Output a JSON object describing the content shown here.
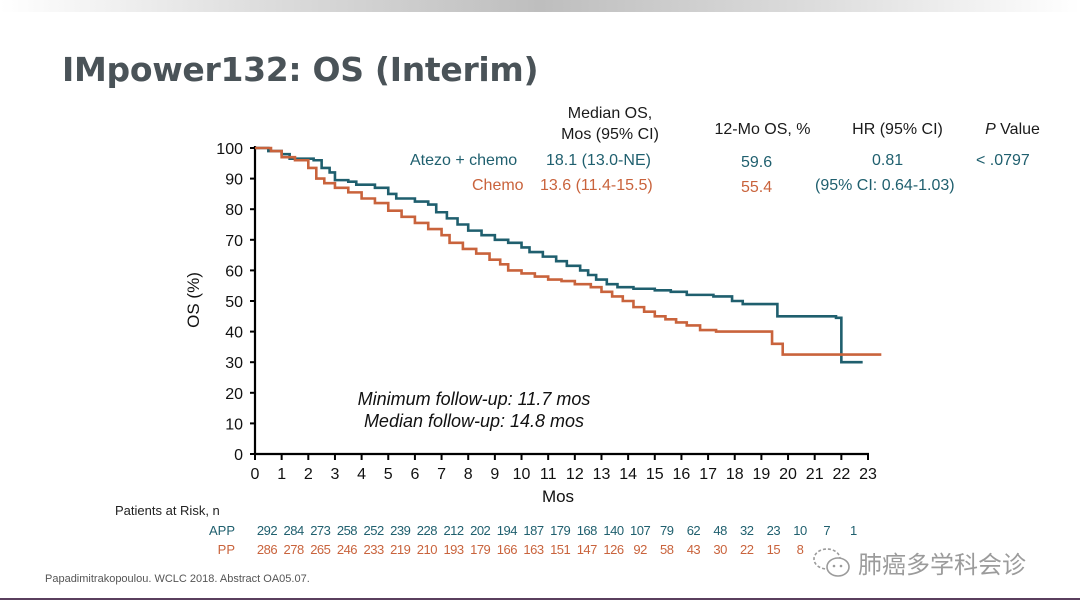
{
  "slide": {
    "title": "IMpower132: OS (Interim)",
    "citation": "Papadimitrakopoulou. WCLC 2018. Abstract OA05.07.",
    "watermark": "肺癌多学科会诊",
    "colors": {
      "atezo": "#1f5f6e",
      "chemo": "#c9633c",
      "title": "#4a5358",
      "rule": "#5a3f5e"
    }
  },
  "table": {
    "headers": {
      "median_line1": "Median OS,",
      "median_line2": "Mos (95% CI)",
      "os12": "12-Mo OS, %",
      "hr": "HR (95% CI)",
      "p_italic": "P",
      "p_rest": " Value"
    },
    "rows": [
      {
        "arm": "Atezo + chemo",
        "median": "18.1 (13.0-NE)",
        "os12": "59.6",
        "hr": "0.81",
        "p": "< .0797"
      },
      {
        "arm": "Chemo",
        "median": "13.6 (11.4-15.5)",
        "os12": "55.4",
        "hr": "(95% CI: 0.64-1.03)",
        "p": ""
      }
    ]
  },
  "annotations": {
    "line1": "Minimum follow-up: 11.7 mos",
    "line2": "Median follow-up: 14.8 mos"
  },
  "risk_table": {
    "title": "Patients at Risk, n",
    "rows": [
      {
        "label": "APP",
        "values": [
          "292",
          "284",
          "273",
          "258",
          "252",
          "239",
          "228",
          "212",
          "202",
          "194",
          "187",
          "179",
          "168",
          "140",
          "107",
          "79",
          "62",
          "48",
          "32",
          "23",
          "10",
          "7",
          "1",
          ""
        ]
      },
      {
        "label": "PP",
        "values": [
          "286",
          "278",
          "265",
          "246",
          "233",
          "219",
          "210",
          "193",
          "179",
          "166",
          "163",
          "151",
          "147",
          "126",
          "92",
          "58",
          "43",
          "30",
          "22",
          "15",
          "8",
          "",
          "",
          ""
        ]
      }
    ]
  },
  "chart_data": {
    "type": "line",
    "subtype": "kaplan-meier step",
    "title": "IMpower132: OS (Interim)",
    "xlabel": "Mos",
    "ylabel": "OS (%)",
    "xlim": [
      0,
      23
    ],
    "ylim": [
      0,
      100
    ],
    "xticks": [
      "0",
      "1",
      "2",
      "3",
      "4",
      "5",
      "6",
      "7",
      "8",
      "9",
      "10",
      "11",
      "12",
      "13",
      "14",
      "15",
      "16",
      "17",
      "18",
      "19",
      "20",
      "21",
      "22",
      "23"
    ],
    "yticks": [
      "0",
      "10",
      "20",
      "30",
      "40",
      "50",
      "60",
      "70",
      "80",
      "90",
      "100"
    ],
    "grid": false,
    "legend": "top-right (inline with summary table)",
    "series": [
      {
        "name": "Atezo + chemo",
        "color": "#1f5f6e",
        "points": [
          [
            0,
            100
          ],
          [
            0.5,
            99
          ],
          [
            1,
            98
          ],
          [
            1.3,
            96.5
          ],
          [
            2,
            96.5
          ],
          [
            2.2,
            96
          ],
          [
            2.5,
            93.5
          ],
          [
            2.8,
            92
          ],
          [
            3,
            89.5
          ],
          [
            3.5,
            89
          ],
          [
            3.8,
            88
          ],
          [
            4.5,
            87
          ],
          [
            5,
            85
          ],
          [
            5.3,
            83.5
          ],
          [
            6,
            82.5
          ],
          [
            6.5,
            81.5
          ],
          [
            6.8,
            79
          ],
          [
            7.2,
            77
          ],
          [
            7.6,
            75
          ],
          [
            8,
            73
          ],
          [
            8.5,
            71.5
          ],
          [
            9,
            70
          ],
          [
            9.5,
            69
          ],
          [
            10,
            67.5
          ],
          [
            10.3,
            66
          ],
          [
            10.8,
            64.5
          ],
          [
            11.3,
            63
          ],
          [
            11.7,
            61.5
          ],
          [
            12.2,
            60
          ],
          [
            12.5,
            58.5
          ],
          [
            12.8,
            57
          ],
          [
            13.2,
            55.5
          ],
          [
            13.6,
            54.5
          ],
          [
            14.2,
            54
          ],
          [
            15,
            53.5
          ],
          [
            15.6,
            53
          ],
          [
            16.2,
            52
          ],
          [
            17.2,
            51.5
          ],
          [
            17.9,
            50
          ],
          [
            18.3,
            49
          ],
          [
            19.4,
            49
          ],
          [
            19.6,
            45
          ],
          [
            21.8,
            44.5
          ],
          [
            22,
            30
          ],
          [
            22.8,
            30
          ]
        ]
      },
      {
        "name": "Chemo",
        "color": "#c9633c",
        "points": [
          [
            0,
            100
          ],
          [
            0.6,
            99
          ],
          [
            1,
            97
          ],
          [
            1.5,
            96
          ],
          [
            2,
            93.5
          ],
          [
            2.3,
            90
          ],
          [
            2.6,
            88.5
          ],
          [
            3,
            87
          ],
          [
            3.5,
            85.5
          ],
          [
            4,
            83.5
          ],
          [
            4.5,
            82
          ],
          [
            5,
            79.5
          ],
          [
            5.5,
            77.5
          ],
          [
            6,
            75.5
          ],
          [
            6.5,
            73.5
          ],
          [
            7,
            71.5
          ],
          [
            7.3,
            69
          ],
          [
            7.8,
            67
          ],
          [
            8.3,
            65.5
          ],
          [
            8.8,
            63.5
          ],
          [
            9.2,
            62
          ],
          [
            9.5,
            60
          ],
          [
            10,
            59
          ],
          [
            10.5,
            58
          ],
          [
            11,
            57
          ],
          [
            11.5,
            56.5
          ],
          [
            12,
            55.5
          ],
          [
            12.6,
            54.5
          ],
          [
            13,
            53
          ],
          [
            13.4,
            51.5
          ],
          [
            13.8,
            50
          ],
          [
            14.2,
            48
          ],
          [
            14.6,
            46.5
          ],
          [
            15,
            45
          ],
          [
            15.4,
            44
          ],
          [
            15.8,
            43
          ],
          [
            16.2,
            42
          ],
          [
            16.7,
            40.5
          ],
          [
            17.3,
            40
          ],
          [
            18,
            40
          ],
          [
            19.4,
            36
          ],
          [
            19.8,
            32.5
          ],
          [
            23.5,
            32.5
          ]
        ]
      }
    ],
    "annotations": [
      "Minimum follow-up: 11.7 mos",
      "Median follow-up: 14.8 mos"
    ]
  }
}
